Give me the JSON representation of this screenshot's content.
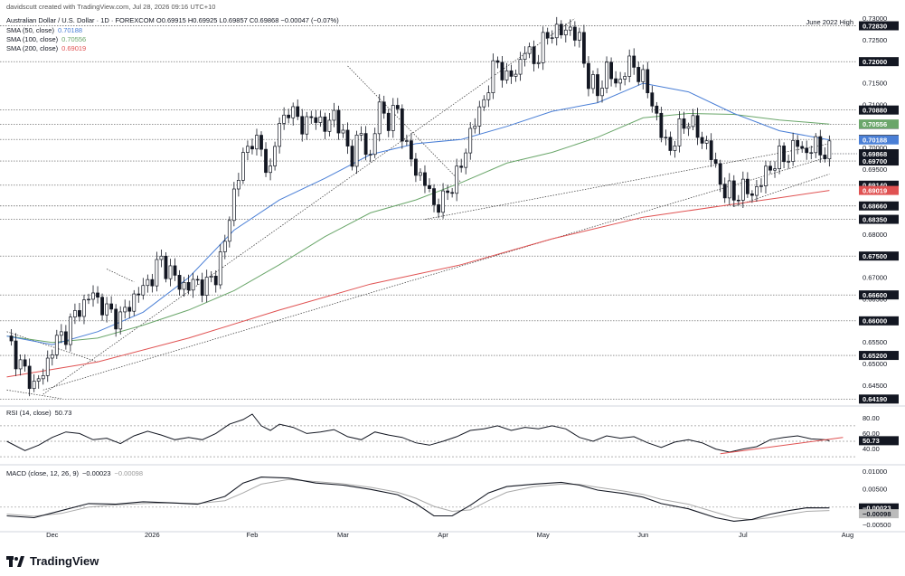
{
  "header": {
    "credit": "davidscutt created with TradingView.com, Jul 28, 2026 09:16 UTC+10",
    "symbol_line": "Australian Dollar / U.S. Dollar · 1D · FOREXCOM  O0.69915  H0.69925  L0.69857  C0.69868  −0.00047 (−0.07%)",
    "sma50": {
      "label": "SMA (50, close)",
      "value": "0.70188",
      "color": "#4a7fd6"
    },
    "sma100": {
      "label": "SMA (100, close)",
      "value": "0.70556",
      "color": "#6aa66a"
    },
    "sma200": {
      "label": "SMA (200, close)",
      "value": "0.69019",
      "color": "#e05252"
    }
  },
  "price_axis": {
    "ticks": [
      "0.73000",
      "0.72500",
      "0.71500",
      "0.71000",
      "0.70000",
      "0.69500",
      "0.68000",
      "0.67000",
      "0.66500",
      "0.65500",
      "0.65000",
      "0.64500"
    ],
    "levels": [
      {
        "value": 0.7283,
        "label": "0.72830",
        "note": "June 2022 High"
      },
      {
        "value": 0.72,
        "label": "0.72000",
        "note": ""
      },
      {
        "value": 0.7088,
        "label": "0.70880",
        "note": ""
      },
      {
        "value": 0.7055,
        "label": "0.70550",
        "note": ""
      },
      {
        "value": 0.702,
        "label": "0.70200",
        "note": ""
      },
      {
        "value": 0.697,
        "label": "0.69700",
        "note": ""
      },
      {
        "value": 0.6914,
        "label": "0.69140",
        "note": ""
      },
      {
        "value": 0.6866,
        "label": "0.68660",
        "note": ""
      },
      {
        "value": 0.6835,
        "label": "0.68350",
        "note": ""
      },
      {
        "value": 0.675,
        "label": "0.67500",
        "note": ""
      },
      {
        "value": 0.666,
        "label": "0.66600",
        "note": ""
      },
      {
        "value": 0.66,
        "label": "0.66000",
        "note": ""
      },
      {
        "value": 0.652,
        "label": "0.65200",
        "note": ""
      },
      {
        "value": 0.6419,
        "label": "0.64190",
        "note": ""
      }
    ],
    "last_price": {
      "value": 0.69868,
      "label": "0.69868"
    },
    "sma50_tag": {
      "value": 0.70188,
      "label": "0.70188"
    },
    "sma100_tag": {
      "value": 0.70556,
      "label": "0.70556"
    },
    "sma200_tag": {
      "value": 0.69019,
      "label": "0.69019"
    }
  },
  "rsi": {
    "label": "RSI (14, close)",
    "value": "50.73",
    "ticks": [
      "80.00",
      "60.00",
      "40.00"
    ],
    "levels": [
      70,
      50,
      30
    ]
  },
  "macd": {
    "label": "MACD (close, 12, 26, 9)",
    "macd_value": "−0.00023",
    "signal_value": "−0.00098",
    "ticks": [
      "0.01000",
      "0.00500",
      "−0.00500"
    ],
    "macd_tag": "−0.00023",
    "signal_tag": "−0.00098"
  },
  "time_axis": {
    "labels": [
      "Dec",
      "2026",
      "Feb",
      "Mar",
      "Apr",
      "May",
      "Jun",
      "Jul",
      "Aug"
    ]
  },
  "logo_text": "TradingView",
  "chart_data": {
    "type": "candlestick",
    "symbol": "AUDUSD",
    "interval": "1D",
    "ylim": [
      0.6405,
      0.7305
    ],
    "months": [
      {
        "label": "Dec",
        "index": 10
      },
      {
        "label": "2026",
        "index": 32
      },
      {
        "label": "Feb",
        "index": 54
      },
      {
        "label": "Mar",
        "index": 74
      },
      {
        "label": "Apr",
        "index": 96
      },
      {
        "label": "May",
        "index": 118
      },
      {
        "label": "Jun",
        "index": 140
      },
      {
        "label": "Jul",
        "index": 162
      },
      {
        "label": "Aug",
        "index": 185
      }
    ],
    "close_path": [
      [
        0,
        0.6565
      ],
      [
        3,
        0.6495
      ],
      [
        6,
        0.6452
      ],
      [
        8,
        0.6475
      ],
      [
        10,
        0.654
      ],
      [
        13,
        0.6575
      ],
      [
        16,
        0.663
      ],
      [
        19,
        0.6662
      ],
      [
        22,
        0.6622
      ],
      [
        25,
        0.6605
      ],
      [
        28,
        0.6655
      ],
      [
        30,
        0.6675
      ],
      [
        32,
        0.6705
      ],
      [
        34,
        0.674
      ],
      [
        36,
        0.6712
      ],
      [
        38,
        0.6685
      ],
      [
        40,
        0.668
      ],
      [
        42,
        0.669
      ],
      [
        44,
        0.668
      ],
      [
        46,
        0.671
      ],
      [
        48,
        0.678
      ],
      [
        50,
        0.69
      ],
      [
        52,
        0.6975
      ],
      [
        54,
        0.7025
      ],
      [
        56,
        0.699
      ],
      [
        58,
        0.6945
      ],
      [
        60,
        0.706
      ],
      [
        62,
        0.7085
      ],
      [
        64,
        0.707
      ],
      [
        66,
        0.705
      ],
      [
        68,
        0.708
      ],
      [
        70,
        0.704
      ],
      [
        72,
        0.7085
      ],
      [
        74,
        0.702
      ],
      [
        76,
        0.6985
      ],
      [
        78,
        0.703
      ],
      [
        80,
        0.6975
      ],
      [
        82,
        0.71
      ],
      [
        84,
        0.706
      ],
      [
        86,
        0.709
      ],
      [
        88,
        0.6995
      ],
      [
        90,
        0.695
      ],
      [
        92,
        0.692
      ],
      [
        94,
        0.687
      ],
      [
        96,
        0.6875
      ],
      [
        98,
        0.692
      ],
      [
        100,
        0.6955
      ],
      [
        102,
        0.704
      ],
      [
        104,
        0.708
      ],
      [
        106,
        0.715
      ],
      [
        108,
        0.72
      ],
      [
        110,
        0.716
      ],
      [
        112,
        0.7175
      ],
      [
        114,
        0.723
      ],
      [
        116,
        0.72
      ],
      [
        118,
        0.724
      ],
      [
        120,
        0.7275
      ],
      [
        122,
        0.7265
      ],
      [
        124,
        0.728
      ],
      [
        126,
        0.7245
      ],
      [
        128,
        0.716
      ],
      [
        130,
        0.7125
      ],
      [
        132,
        0.7185
      ],
      [
        134,
        0.7145
      ],
      [
        136,
        0.718
      ],
      [
        138,
        0.7195
      ],
      [
        140,
        0.7155
      ],
      [
        142,
        0.711
      ],
      [
        144,
        0.703
      ],
      [
        146,
        0.7
      ],
      [
        148,
        0.704
      ],
      [
        150,
        0.707
      ],
      [
        152,
        0.703
      ],
      [
        154,
        0.701
      ],
      [
        156,
        0.695
      ],
      [
        158,
        0.69
      ],
      [
        160,
        0.689
      ],
      [
        162,
        0.6905
      ],
      [
        164,
        0.6895
      ],
      [
        166,
        0.692
      ],
      [
        168,
        0.696
      ],
      [
        170,
        0.6975
      ],
      [
        172,
        0.6985
      ],
      [
        174,
        0.701
      ],
      [
        176,
        0.699
      ],
      [
        178,
        0.7005
      ],
      [
        180,
        0.699
      ],
      [
        181,
        0.69868
      ]
    ],
    "sma50": [
      [
        0,
        0.6565
      ],
      [
        10,
        0.6545
      ],
      [
        20,
        0.6575
      ],
      [
        30,
        0.662
      ],
      [
        40,
        0.67
      ],
      [
        50,
        0.681
      ],
      [
        60,
        0.688
      ],
      [
        70,
        0.693
      ],
      [
        80,
        0.6985
      ],
      [
        90,
        0.701
      ],
      [
        100,
        0.702
      ],
      [
        110,
        0.705
      ],
      [
        120,
        0.7085
      ],
      [
        130,
        0.7105
      ],
      [
        140,
        0.715
      ],
      [
        150,
        0.713
      ],
      [
        160,
        0.708
      ],
      [
        170,
        0.704
      ],
      [
        181,
        0.70188
      ]
    ],
    "sma100": [
      [
        0,
        0.6565
      ],
      [
        10,
        0.655
      ],
      [
        20,
        0.656
      ],
      [
        30,
        0.659
      ],
      [
        40,
        0.6625
      ],
      [
        50,
        0.667
      ],
      [
        60,
        0.673
      ],
      [
        70,
        0.6795
      ],
      [
        80,
        0.685
      ],
      [
        90,
        0.688
      ],
      [
        100,
        0.692
      ],
      [
        110,
        0.6965
      ],
      [
        120,
        0.699
      ],
      [
        130,
        0.7025
      ],
      [
        140,
        0.707
      ],
      [
        150,
        0.708
      ],
      [
        160,
        0.7078
      ],
      [
        170,
        0.7065
      ],
      [
        181,
        0.70556
      ]
    ],
    "sma200": [
      [
        0,
        0.647
      ],
      [
        20,
        0.6505
      ],
      [
        40,
        0.656
      ],
      [
        60,
        0.6625
      ],
      [
        80,
        0.6685
      ],
      [
        100,
        0.673
      ],
      [
        120,
        0.679
      ],
      [
        140,
        0.684
      ],
      [
        160,
        0.687
      ],
      [
        170,
        0.6885
      ],
      [
        181,
        0.69019
      ]
    ],
    "rsi": [
      [
        0,
        50
      ],
      [
        4,
        38
      ],
      [
        7,
        45
      ],
      [
        10,
        55
      ],
      [
        13,
        62
      ],
      [
        16,
        60
      ],
      [
        19,
        52
      ],
      [
        22,
        54
      ],
      [
        25,
        47
      ],
      [
        28,
        57
      ],
      [
        31,
        63
      ],
      [
        34,
        58
      ],
      [
        37,
        52
      ],
      [
        40,
        55
      ],
      [
        43,
        52
      ],
      [
        46,
        60
      ],
      [
        49,
        72
      ],
      [
        52,
        78
      ],
      [
        54,
        85
      ],
      [
        56,
        70
      ],
      [
        58,
        64
      ],
      [
        60,
        72
      ],
      [
        63,
        68
      ],
      [
        66,
        60
      ],
      [
        69,
        62
      ],
      [
        72,
        65
      ],
      [
        75,
        56
      ],
      [
        78,
        52
      ],
      [
        81,
        62
      ],
      [
        84,
        58
      ],
      [
        87,
        55
      ],
      [
        90,
        48
      ],
      [
        93,
        45
      ],
      [
        96,
        50
      ],
      [
        99,
        56
      ],
      [
        102,
        64
      ],
      [
        105,
        66
      ],
      [
        108,
        70
      ],
      [
        111,
        64
      ],
      [
        114,
        68
      ],
      [
        117,
        66
      ],
      [
        120,
        70
      ],
      [
        123,
        66
      ],
      [
        126,
        55
      ],
      [
        129,
        50
      ],
      [
        132,
        57
      ],
      [
        135,
        54
      ],
      [
        138,
        56
      ],
      [
        141,
        48
      ],
      [
        144,
        42
      ],
      [
        147,
        49
      ],
      [
        150,
        52
      ],
      [
        153,
        48
      ],
      [
        156,
        40
      ],
      [
        159,
        36
      ],
      [
        162,
        40
      ],
      [
        165,
        43
      ],
      [
        168,
        52
      ],
      [
        171,
        55
      ],
      [
        174,
        57
      ],
      [
        177,
        53
      ],
      [
        180,
        52
      ],
      [
        181,
        50.73
      ]
    ],
    "macd_line": [
      [
        0,
        -0.0025
      ],
      [
        6,
        -0.003
      ],
      [
        12,
        -0.001
      ],
      [
        18,
        0.001
      ],
      [
        24,
        0.0008
      ],
      [
        30,
        0.0015
      ],
      [
        36,
        0.0012
      ],
      [
        42,
        0.0008
      ],
      [
        48,
        0.003
      ],
      [
        52,
        0.0068
      ],
      [
        56,
        0.0085
      ],
      [
        62,
        0.0082
      ],
      [
        68,
        0.0068
      ],
      [
        74,
        0.0062
      ],
      [
        80,
        0.005
      ],
      [
        86,
        0.0035
      ],
      [
        90,
        0.001
      ],
      [
        94,
        -0.0025
      ],
      [
        98,
        -0.0025
      ],
      [
        102,
        0.0005
      ],
      [
        106,
        0.004
      ],
      [
        110,
        0.0058
      ],
      [
        116,
        0.0065
      ],
      [
        122,
        0.007
      ],
      [
        126,
        0.0062
      ],
      [
        130,
        0.0048
      ],
      [
        136,
        0.0038
      ],
      [
        140,
        0.0028
      ],
      [
        144,
        0.001
      ],
      [
        150,
        -0.0005
      ],
      [
        156,
        -0.003
      ],
      [
        160,
        -0.004
      ],
      [
        164,
        -0.0035
      ],
      [
        168,
        -0.002
      ],
      [
        172,
        -0.001
      ],
      [
        176,
        -0.0002
      ],
      [
        181,
        -0.00023
      ]
    ],
    "signal_line": [
      [
        0,
        -0.002
      ],
      [
        6,
        -0.0026
      ],
      [
        12,
        -0.0018
      ],
      [
        18,
        0.0
      ],
      [
        24,
        0.0006
      ],
      [
        30,
        0.001
      ],
      [
        36,
        0.0012
      ],
      [
        42,
        0.001
      ],
      [
        48,
        0.0018
      ],
      [
        52,
        0.004
      ],
      [
        56,
        0.0065
      ],
      [
        62,
        0.0078
      ],
      [
        68,
        0.0072
      ],
      [
        74,
        0.0066
      ],
      [
        80,
        0.0056
      ],
      [
        86,
        0.0042
      ],
      [
        90,
        0.0025
      ],
      [
        94,
        0.0002
      ],
      [
        98,
        -0.0012
      ],
      [
        102,
        -0.0008
      ],
      [
        106,
        0.0018
      ],
      [
        110,
        0.0042
      ],
      [
        116,
        0.0058
      ],
      [
        122,
        0.0065
      ],
      [
        126,
        0.0064
      ],
      [
        130,
        0.0056
      ],
      [
        136,
        0.0045
      ],
      [
        140,
        0.0036
      ],
      [
        144,
        0.0022
      ],
      [
        150,
        0.0008
      ],
      [
        156,
        -0.0015
      ],
      [
        160,
        -0.003
      ],
      [
        164,
        -0.0036
      ],
      [
        168,
        -0.003
      ],
      [
        172,
        -0.002
      ],
      [
        176,
        -0.0012
      ],
      [
        181,
        -0.00098
      ]
    ]
  }
}
